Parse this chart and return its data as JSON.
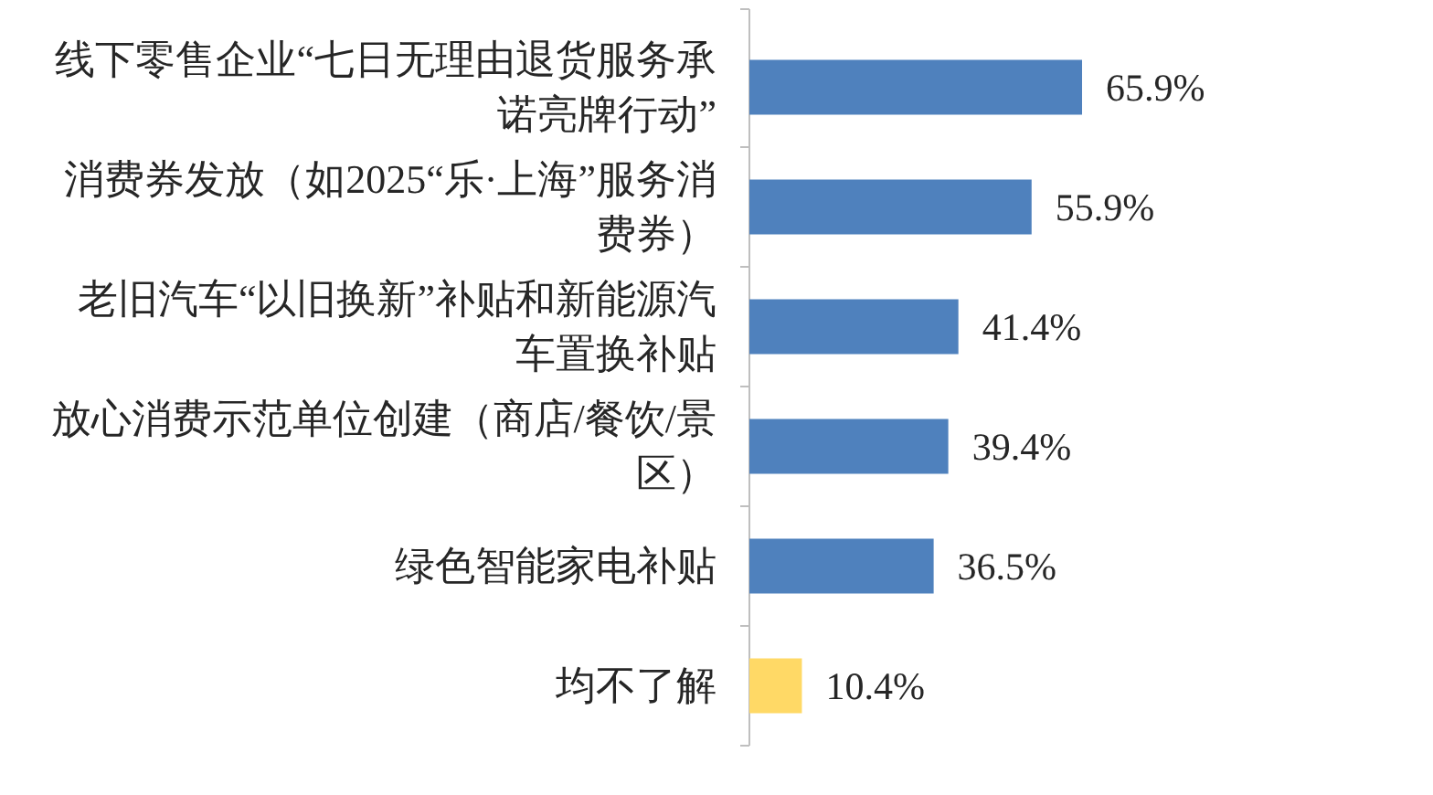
{
  "chart_data": {
    "type": "bar",
    "orientation": "horizontal",
    "value_labels": [
      "65.9%",
      "55.9%",
      "41.4%",
      "39.4%",
      "36.5%",
      "10.4%"
    ],
    "categories": [
      "线下零售企业“七日无理由退货服务承诺亮牌行动”",
      "消费券发放（如2025“乐·上海”服务消费券）",
      "老旧汽车“以旧换新”补贴和新能源汽车置换补贴",
      "放心消费示范单位创建（商店/餐饮/景区）",
      "绿色智能家电补贴",
      "均不了解"
    ],
    "values": [
      65.9,
      55.9,
      41.4,
      39.4,
      36.5,
      10.4
    ],
    "colors": [
      "#4f81bd",
      "#4f81bd",
      "#4f81bd",
      "#4f81bd",
      "#4f81bd",
      "#ffd966"
    ]
  }
}
